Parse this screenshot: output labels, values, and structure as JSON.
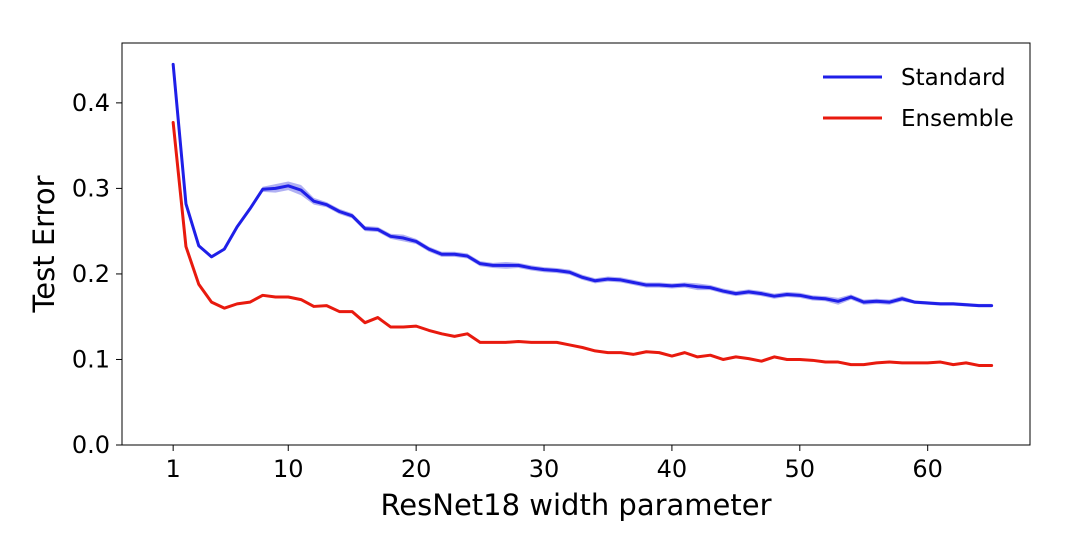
{
  "chart_data": {
    "type": "line",
    "xlabel": "ResNet18 width parameter",
    "ylabel": "Test Error",
    "xlim": [
      -3,
      68
    ],
    "ylim": [
      0.0,
      0.47
    ],
    "xticks": [
      1,
      10,
      20,
      30,
      40,
      50,
      60
    ],
    "yticks": [
      0.0,
      0.1,
      0.2,
      0.3,
      0.4
    ],
    "ytick_labels": [
      "0.0",
      "0.1",
      "0.2",
      "0.3",
      "0.4"
    ],
    "grid": false,
    "legend_position": "top-right",
    "series": [
      {
        "name": "Standard",
        "color": "#1f1fe8",
        "band_color": "#9c9cf0",
        "x": [
          1,
          2,
          3,
          4,
          5,
          6,
          7,
          8,
          9,
          10,
          11,
          12,
          13,
          14,
          15,
          16,
          17,
          18,
          19,
          20,
          21,
          22,
          23,
          24,
          25,
          26,
          27,
          28,
          29,
          30,
          31,
          32,
          33,
          34,
          35,
          36,
          37,
          38,
          39,
          40,
          41,
          42,
          43,
          44,
          45,
          46,
          47,
          48,
          49,
          50,
          51,
          52,
          53,
          54,
          55,
          56,
          57,
          58,
          59,
          60,
          61,
          62,
          63,
          64,
          65
        ],
        "values": [
          0.445,
          0.282,
          0.233,
          0.22,
          0.229,
          0.255,
          0.276,
          0.299,
          0.3,
          0.303,
          0.298,
          0.285,
          0.281,
          0.273,
          0.268,
          0.253,
          0.252,
          0.244,
          0.242,
          0.238,
          0.229,
          0.223,
          0.223,
          0.221,
          0.212,
          0.21,
          0.21,
          0.21,
          0.207,
          0.205,
          0.204,
          0.202,
          0.196,
          0.192,
          0.194,
          0.193,
          0.19,
          0.187,
          0.187,
          0.186,
          0.187,
          0.185,
          0.184,
          0.18,
          0.177,
          0.179,
          0.177,
          0.174,
          0.176,
          0.175,
          0.172,
          0.171,
          0.168,
          0.173,
          0.167,
          0.168,
          0.167,
          0.171,
          0.167,
          0.166,
          0.165,
          0.165,
          0.164,
          0.163,
          0.163
        ],
        "band_width": [
          0,
          0,
          0,
          0,
          0,
          0,
          0,
          0.003,
          0.005,
          0.005,
          0.006,
          0.004,
          0.003,
          0.003,
          0.003,
          0.003,
          0.003,
          0.003,
          0.004,
          0.003,
          0.003,
          0.003,
          0.003,
          0.003,
          0.003,
          0.003,
          0.004,
          0.003,
          0.003,
          0.003,
          0.003,
          0.003,
          0.003,
          0.003,
          0.003,
          0.003,
          0.003,
          0.003,
          0.003,
          0.003,
          0.003,
          0.004,
          0.003,
          0.003,
          0.003,
          0.003,
          0.003,
          0.003,
          0.003,
          0.003,
          0.003,
          0.003,
          0.004,
          0.003,
          0.003,
          0.003,
          0.003,
          0.003,
          0.002,
          0.002,
          0.002,
          0.002,
          0.002,
          0.002,
          0.002
        ]
      },
      {
        "name": "Ensemble",
        "color": "#e81a0e",
        "x": [
          1,
          2,
          3,
          4,
          5,
          6,
          7,
          8,
          9,
          10,
          11,
          12,
          13,
          14,
          15,
          16,
          17,
          18,
          19,
          20,
          21,
          22,
          23,
          24,
          25,
          26,
          27,
          28,
          29,
          30,
          31,
          32,
          33,
          34,
          35,
          36,
          37,
          38,
          39,
          40,
          41,
          42,
          43,
          44,
          45,
          46,
          47,
          48,
          49,
          50,
          51,
          52,
          53,
          54,
          55,
          56,
          57,
          58,
          59,
          60,
          61,
          62,
          63,
          64,
          65
        ],
        "values": [
          0.377,
          0.232,
          0.188,
          0.167,
          0.16,
          0.165,
          0.167,
          0.175,
          0.173,
          0.173,
          0.17,
          0.162,
          0.163,
          0.156,
          0.156,
          0.143,
          0.149,
          0.138,
          0.138,
          0.139,
          0.134,
          0.13,
          0.127,
          0.13,
          0.12,
          0.12,
          0.12,
          0.121,
          0.12,
          0.12,
          0.12,
          0.117,
          0.114,
          0.11,
          0.108,
          0.108,
          0.106,
          0.109,
          0.108,
          0.104,
          0.108,
          0.103,
          0.105,
          0.1,
          0.103,
          0.101,
          0.098,
          0.103,
          0.1,
          0.1,
          0.099,
          0.097,
          0.097,
          0.094,
          0.094,
          0.096,
          0.097,
          0.096,
          0.096,
          0.096,
          0.097,
          0.094,
          0.096,
          0.093,
          0.093
        ]
      }
    ]
  }
}
